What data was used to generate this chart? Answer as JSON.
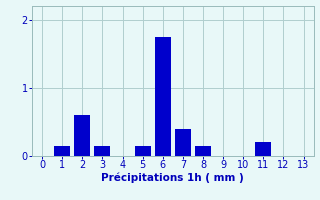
{
  "categories": [
    0,
    1,
    2,
    3,
    4,
    5,
    6,
    7,
    8,
    9,
    10,
    11,
    12,
    13
  ],
  "values": [
    0.0,
    0.15,
    0.6,
    0.15,
    0.0,
    0.15,
    1.75,
    0.4,
    0.15,
    0.0,
    0.0,
    0.2,
    0.0,
    0.0
  ],
  "bar_color": "#0000cc",
  "background_color": "#e8f8f8",
  "grid_color": "#b0cece",
  "xlabel": "Précipitations 1h ( mm )",
  "ylim": [
    0,
    2.2
  ],
  "yticks": [
    0,
    1,
    2
  ],
  "xticks": [
    0,
    1,
    2,
    3,
    4,
    5,
    6,
    7,
    8,
    9,
    10,
    11,
    12,
    13
  ],
  "xlim": [
    -0.5,
    13.5
  ],
  "label_fontsize": 7.5,
  "tick_fontsize": 7,
  "bar_width": 0.8
}
